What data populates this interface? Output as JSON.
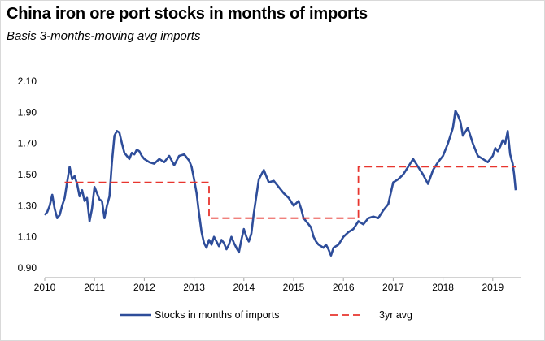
{
  "chart_data": {
    "type": "line",
    "title": "China iron ore port stocks in months of imports",
    "subtitle": "Basis 3-months-moving avg imports",
    "xlabel": "",
    "ylabel": "",
    "xlim": [
      2010,
      2019.55
    ],
    "ylim": [
      0.9,
      2.1
    ],
    "y_ticks": [
      "0.90",
      "1.10",
      "1.30",
      "1.50",
      "1.70",
      "1.90",
      "2.10"
    ],
    "x_ticks": [
      "2010",
      "2011",
      "2012",
      "2013",
      "2014",
      "2015",
      "2016",
      "2017",
      "2018",
      "2019"
    ],
    "grid": false,
    "legend_position": "bottom",
    "series": [
      {
        "name": "Stocks in months of imports",
        "color": "#2e4d9a",
        "style": "solid",
        "x": [
          2010.0,
          2010.05,
          2010.1,
          2010.15,
          2010.2,
          2010.25,
          2010.3,
          2010.35,
          2010.4,
          2010.45,
          2010.5,
          2010.55,
          2010.6,
          2010.65,
          2010.7,
          2010.75,
          2010.8,
          2010.85,
          2010.9,
          2010.95,
          2011.0,
          2011.05,
          2011.1,
          2011.15,
          2011.2,
          2011.25,
          2011.3,
          2011.35,
          2011.4,
          2011.45,
          2011.5,
          2011.55,
          2011.6,
          2011.65,
          2011.7,
          2011.75,
          2011.8,
          2011.85,
          2011.9,
          2011.95,
          2012.0,
          2012.1,
          2012.2,
          2012.3,
          2012.4,
          2012.5,
          2012.6,
          2012.7,
          2012.8,
          2012.9,
          2012.95,
          2013.0,
          2013.05,
          2013.1,
          2013.15,
          2013.2,
          2013.25,
          2013.3,
          2013.35,
          2013.4,
          2013.45,
          2013.5,
          2013.55,
          2013.6,
          2013.65,
          2013.7,
          2013.75,
          2013.8,
          2013.85,
          2013.9,
          2013.95,
          2014.0,
          2014.05,
          2014.1,
          2014.15,
          2014.2,
          2014.3,
          2014.4,
          2014.5,
          2014.6,
          2014.7,
          2014.8,
          2014.9,
          2015.0,
          2015.1,
          2015.15,
          2015.2,
          2015.25,
          2015.3,
          2015.35,
          2015.4,
          2015.45,
          2015.5,
          2015.55,
          2015.6,
          2015.65,
          2015.7,
          2015.75,
          2015.8,
          2015.9,
          2016.0,
          2016.1,
          2016.2,
          2016.3,
          2016.4,
          2016.5,
          2016.6,
          2016.7,
          2016.8,
          2016.9,
          2017.0,
          2017.1,
          2017.2,
          2017.3,
          2017.4,
          2017.5,
          2017.6,
          2017.7,
          2017.8,
          2017.9,
          2018.0,
          2018.1,
          2018.2,
          2018.25,
          2018.3,
          2018.35,
          2018.4,
          2018.5,
          2018.6,
          2018.7,
          2018.8,
          2018.9,
          2019.0,
          2019.05,
          2019.1,
          2019.15,
          2019.2,
          2019.25,
          2019.3,
          2019.35,
          2019.4,
          2019.43,
          2019.46
        ],
        "y": [
          1.24,
          1.26,
          1.3,
          1.37,
          1.28,
          1.22,
          1.24,
          1.3,
          1.35,
          1.45,
          1.55,
          1.47,
          1.49,
          1.44,
          1.36,
          1.4,
          1.33,
          1.35,
          1.2,
          1.28,
          1.42,
          1.38,
          1.34,
          1.33,
          1.22,
          1.3,
          1.36,
          1.58,
          1.75,
          1.78,
          1.77,
          1.7,
          1.64,
          1.62,
          1.6,
          1.64,
          1.63,
          1.66,
          1.65,
          1.62,
          1.6,
          1.58,
          1.57,
          1.6,
          1.58,
          1.62,
          1.56,
          1.62,
          1.63,
          1.59,
          1.55,
          1.47,
          1.38,
          1.25,
          1.13,
          1.06,
          1.03,
          1.08,
          1.05,
          1.1,
          1.07,
          1.04,
          1.08,
          1.06,
          1.02,
          1.05,
          1.1,
          1.06,
          1.03,
          1.0,
          1.08,
          1.15,
          1.1,
          1.07,
          1.12,
          1.25,
          1.47,
          1.53,
          1.45,
          1.46,
          1.42,
          1.38,
          1.35,
          1.3,
          1.33,
          1.28,
          1.22,
          1.2,
          1.18,
          1.16,
          1.1,
          1.07,
          1.05,
          1.04,
          1.03,
          1.05,
          1.02,
          0.98,
          1.03,
          1.05,
          1.1,
          1.13,
          1.15,
          1.2,
          1.18,
          1.22,
          1.23,
          1.22,
          1.27,
          1.31,
          1.45,
          1.47,
          1.5,
          1.55,
          1.6,
          1.55,
          1.5,
          1.44,
          1.53,
          1.58,
          1.62,
          1.7,
          1.8,
          1.91,
          1.88,
          1.84,
          1.75,
          1.8,
          1.7,
          1.62,
          1.6,
          1.58,
          1.62,
          1.67,
          1.65,
          1.68,
          1.72,
          1.7,
          1.78,
          1.63,
          1.57,
          1.5,
          1.4
        ]
      },
      {
        "name": "3yr avg",
        "color": "#e8352e",
        "style": "dashed",
        "x": [
          2010.4,
          2013.3,
          2013.3,
          2016.3,
          2016.3,
          2019.46
        ],
        "y": [
          1.45,
          1.45,
          1.22,
          1.22,
          1.55,
          1.55
        ]
      }
    ]
  }
}
